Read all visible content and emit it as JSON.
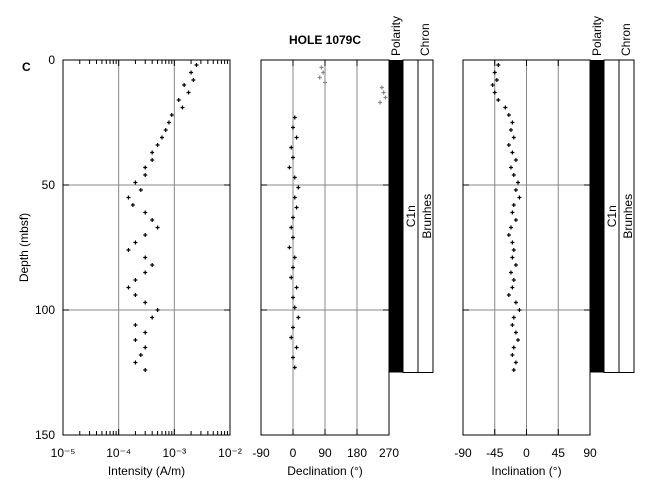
{
  "chart_data": [
    {
      "type": "scatter",
      "panel_label": "C",
      "xlabel": "Intensity (A/m)",
      "ylabel": "Depth (mbsf)",
      "xlog": true,
      "xlim": [
        1e-05,
        0.01
      ],
      "xticks": [
        {
          "value": 1e-05,
          "label": "10⁻⁵"
        },
        {
          "value": 0.0001,
          "label": "10⁻⁴"
        },
        {
          "value": 0.001,
          "label": "10⁻³"
        },
        {
          "value": 0.01,
          "label": "10⁻²"
        }
      ],
      "ylim": [
        0,
        150
      ],
      "yticks": [
        0,
        50,
        100,
        150
      ],
      "grid": true,
      "series": [
        {
          "color": "#000000",
          "x": [
            0.0025,
            0.002,
            0.0022,
            0.0015,
            0.0018,
            0.0012,
            0.0014,
            0.0009,
            0.0008,
            0.0007,
            0.0006,
            0.0005,
            0.0004,
            0.0004,
            0.0003,
            0.0003,
            0.0002,
            0.00025,
            0.00015,
            0.00018,
            0.0003,
            0.0004,
            0.0005,
            0.0003,
            0.0002,
            0.00015,
            0.0003,
            0.0004,
            0.0003,
            0.0002,
            0.00015,
            0.0002,
            0.0003,
            0.0005,
            0.0004,
            0.0002,
            0.0003,
            0.0002,
            0.0003,
            0.00025,
            0.0002,
            0.0003
          ],
          "values": [
            2,
            5,
            8,
            10,
            13,
            16,
            19,
            22,
            25,
            28,
            31,
            34,
            37,
            40,
            43,
            46,
            49,
            52,
            55,
            58,
            61,
            64,
            67,
            70,
            73,
            76,
            79,
            82,
            85,
            88,
            91,
            94,
            97,
            100,
            103,
            106,
            109,
            112,
            115,
            118,
            121,
            124
          ]
        }
      ]
    },
    {
      "type": "scatter",
      "title": "HOLE 1079C",
      "xlabel": "Declination (°)",
      "xlim": [
        -90,
        270
      ],
      "xticks": [
        -90,
        0,
        90,
        180,
        270
      ],
      "ylim": [
        0,
        150
      ],
      "yticks": [
        0,
        50,
        100,
        150
      ],
      "grid": true,
      "series": [
        {
          "color": "#888888",
          "x": [
            80,
            85,
            75,
            90,
            250,
            255,
            260,
            245
          ],
          "values": [
            3,
            5,
            7,
            9,
            11,
            13,
            15,
            17
          ]
        },
        {
          "color": "#000000",
          "x": [
            5,
            0,
            10,
            -5,
            0,
            -10,
            5,
            15,
            5,
            10,
            0,
            -5,
            0,
            -10,
            5,
            0,
            -5,
            10,
            0,
            5,
            15,
            0,
            -5,
            10,
            0,
            5
          ],
          "values": [
            23,
            27,
            31,
            35,
            39,
            43,
            47,
            51,
            55,
            59,
            63,
            67,
            71,
            75,
            79,
            83,
            87,
            91,
            95,
            99,
            103,
            107,
            111,
            115,
            119,
            123
          ]
        }
      ]
    },
    {
      "type": "scatter",
      "xlabel": "Inclination (°)",
      "xlim": [
        -90,
        90
      ],
      "xticks": [
        -90,
        -45,
        0,
        45,
        90
      ],
      "ylim": [
        0,
        150
      ],
      "yticks": [
        0,
        50,
        100,
        150
      ],
      "grid": true,
      "series": [
        {
          "color": "#000000",
          "x": [
            -40,
            -45,
            -42,
            -48,
            -45,
            -40,
            -30,
            -25,
            -20,
            -22,
            -18,
            -25,
            -20,
            -15,
            -22,
            -18,
            -12,
            -15,
            -10,
            -18,
            -20,
            -15,
            -22,
            -25,
            -20,
            -18,
            -20,
            -15,
            -22,
            -18,
            -20,
            -25,
            -15,
            -10,
            -18,
            -20,
            -15,
            -12,
            -18,
            -20,
            -15,
            -18
          ],
          "values": [
            2,
            5,
            8,
            10,
            13,
            16,
            19,
            22,
            25,
            28,
            31,
            34,
            37,
            40,
            43,
            46,
            49,
            52,
            55,
            58,
            61,
            64,
            67,
            70,
            73,
            76,
            79,
            82,
            85,
            88,
            91,
            94,
            97,
            100,
            103,
            106,
            109,
            112,
            115,
            118,
            121,
            124
          ]
        }
      ]
    }
  ],
  "columns": {
    "polarity_label": "Polarity",
    "chron_label": "Chron",
    "chron": "C1n",
    "epoch": "Brunhes",
    "top": 0,
    "bottom": 125
  }
}
